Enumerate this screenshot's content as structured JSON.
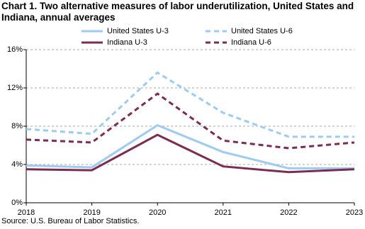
{
  "chart_data": {
    "type": "line",
    "title": "Chart 1. Two alternative measures of labor underutilization, United States and Indiana, annual averages",
    "source": "Source: U.S. Bureau of Labor Statistics.",
    "x": [
      2018,
      2019,
      2020,
      2021,
      2022,
      2023
    ],
    "xlim": [
      2018,
      2023
    ],
    "xticks": [
      2018,
      2019,
      2020,
      2021,
      2022,
      2023
    ],
    "ylim": [
      0,
      16
    ],
    "yticks": [
      {
        "value": 0,
        "label": "0%"
      },
      {
        "value": 4,
        "label": "4%"
      },
      {
        "value": 8,
        "label": "8%"
      },
      {
        "value": 12,
        "label": "12%"
      },
      {
        "value": 16,
        "label": "16%"
      }
    ],
    "grid": true,
    "series": [
      {
        "name": "United States U-3",
        "color": "#9dcbf1",
        "dash": false,
        "values": [
          3.9,
          3.7,
          8.1,
          5.3,
          3.6,
          3.6
        ]
      },
      {
        "name": "United States U-6",
        "color": "#9dcbf1",
        "dash": true,
        "values": [
          7.7,
          7.2,
          13.6,
          9.4,
          6.9,
          6.9
        ]
      },
      {
        "name": "Indiana U-3",
        "color": "#7b2c4f",
        "dash": false,
        "values": [
          3.5,
          3.4,
          7.1,
          3.8,
          3.2,
          3.5
        ]
      },
      {
        "name": "Indiana U-6",
        "color": "#7b2c4f",
        "dash": true,
        "values": [
          6.6,
          6.3,
          11.4,
          6.5,
          5.7,
          6.3
        ]
      }
    ]
  }
}
